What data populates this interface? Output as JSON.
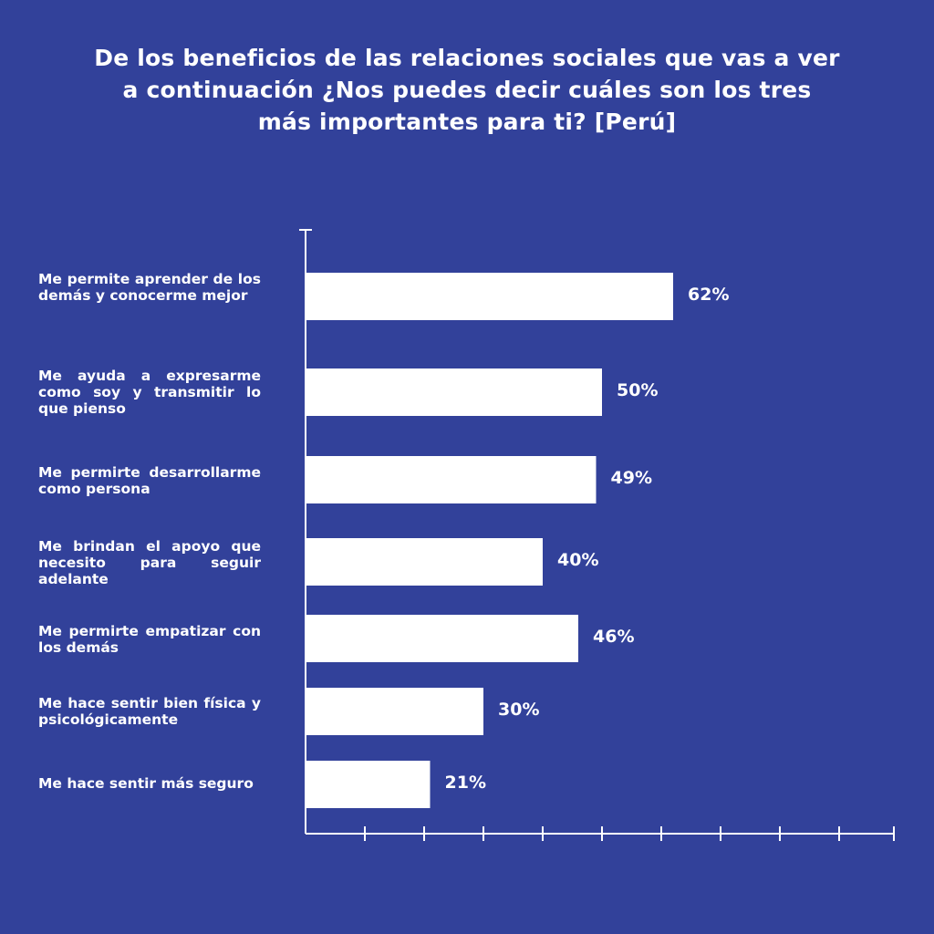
{
  "chart_data": {
    "type": "bar",
    "orientation": "horizontal",
    "title_lines": [
      "De los beneficios de las relaciones sociales que vas a ver",
      "a continuación ¿Nos puedes decir cuáles son los tres",
      "más importantes para ti? [Perú]"
    ],
    "categories": [
      "Me permite aprender de los demás y conocerme mejor",
      "Me ayuda a expresarme como soy y transmitir lo que pienso",
      "Me permirte desarrollarme como persona",
      "Me brindan el apoyo que necesito para seguir adelante",
      "Me permirte empatizar con los demás",
      "Me hace sentir bien física y psicológicamente",
      "Me hace sentir más seguro"
    ],
    "values": [
      62,
      50,
      49,
      40,
      46,
      30,
      21
    ],
    "value_labels": [
      "62%",
      "50%",
      "49%",
      "40%",
      "46%",
      "30%",
      "21%"
    ],
    "xlim": [
      0,
      100
    ],
    "grid": false,
    "legend": "none",
    "colors": {
      "background": "#32419a",
      "bar": "#ffffff",
      "axis": "#ffffff",
      "text": "#ffffff"
    }
  }
}
